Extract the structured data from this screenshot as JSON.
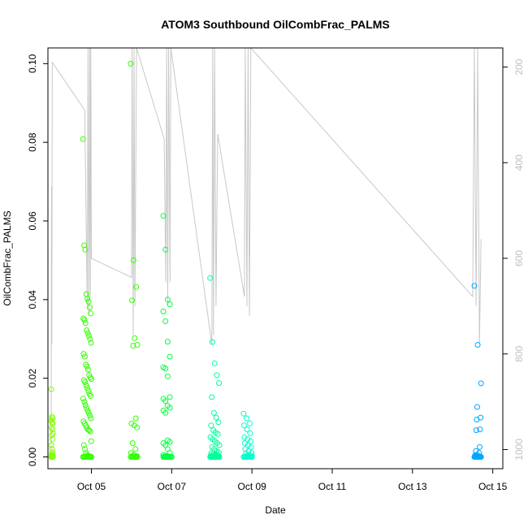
{
  "chart_data": {
    "type": "scatter",
    "title": "ATOM3 Southbound OilCombFrac_PALMS",
    "xlabel": "Date",
    "ylabel": "OilCombFrac_PALMS",
    "x_axis": {
      "type": "date",
      "min": "2016-10-03T22:00",
      "max": "2016-10-15T06:00",
      "ticks": [
        {
          "value": "2016-10-05T00:00",
          "label": "Oct 05"
        },
        {
          "value": "2016-10-07T00:00",
          "label": "Oct 07"
        },
        {
          "value": "2016-10-09T00:00",
          "label": "Oct 09"
        },
        {
          "value": "2016-10-11T00:00",
          "label": "Oct 11"
        },
        {
          "value": "2016-10-13T00:00",
          "label": "Oct 13"
        },
        {
          "value": "2016-10-15T00:00",
          "label": "Oct 15"
        }
      ]
    },
    "y_axis": {
      "min": -0.003,
      "max": 0.104,
      "ticks": [
        {
          "value": 0.0,
          "label": "0.00"
        },
        {
          "value": 0.02,
          "label": "0.02"
        },
        {
          "value": 0.04,
          "label": "0.04"
        },
        {
          "value": 0.06,
          "label": "0.06"
        },
        {
          "value": 0.08,
          "label": "0.08"
        },
        {
          "value": 0.1,
          "label": "0.10"
        }
      ]
    },
    "y2_axis": {
      "min": 1040,
      "max": 160,
      "reversed": true,
      "ticks": [
        {
          "value": 200,
          "label": "200"
        },
        {
          "value": 400,
          "label": "400"
        },
        {
          "value": 600,
          "label": "600"
        },
        {
          "value": 800,
          "label": "800"
        },
        {
          "value": 1000,
          "label": "1000"
        }
      ]
    },
    "grid": false,
    "legend": "none",
    "marker": "open-circle",
    "colors": {
      "flight1": "#80ff00",
      "flight2": "#33ff00",
      "flight3": "#00ff40",
      "flight4": "#00ff99",
      "flight5": "#00ffcc",
      "flight6": "#00a8ff",
      "pressure_line": "#c8c8c8",
      "axis": "#000000",
      "secondary_axis_labels": "#bfbfbf"
    },
    "series": [
      {
        "color_key": "flight1",
        "x_start": "2016-10-04T00:00",
        "x_end": "2016-10-04T01:00",
        "y": [
          0.0172,
          0.0102,
          0.0098,
          0.0093,
          0.0088,
          0.0085,
          0.0075,
          0.007,
          0.006,
          0.0055,
          0.0045,
          0.003,
          0.002,
          0.0012,
          0.0008,
          0.0005,
          0.0003,
          0.0002,
          0.0001,
          0.0,
          0.0,
          0.0,
          0.0,
          0.0
        ]
      },
      {
        "color_key": "flight2",
        "x_start": "2016-10-04T19:00",
        "x_end": "2016-10-05T00:00",
        "y": [
          0.0808,
          0.0538,
          0.0527,
          0.0414,
          0.0402,
          0.0395,
          0.038,
          0.0365,
          0.0352,
          0.0348,
          0.034,
          0.0322,
          0.0315,
          0.0308,
          0.03,
          0.029,
          0.0262,
          0.0255,
          0.0235,
          0.023,
          0.0222,
          0.0208,
          0.0202,
          0.0198,
          0.0195,
          0.019,
          0.0182,
          0.0175,
          0.0168,
          0.016,
          0.0155,
          0.0148,
          0.014,
          0.0132,
          0.0125,
          0.0118,
          0.0112,
          0.0105,
          0.0098,
          0.009,
          0.0085,
          0.008,
          0.0075,
          0.007,
          0.0068,
          0.0065,
          0.004,
          0.003,
          0.002,
          0.001,
          0.0005,
          0.0003,
          0.0002,
          0.0001,
          0.0,
          0.0,
          0.0,
          0.0,
          0.0,
          0.0,
          0.0,
          0.0,
          0.0,
          0.0
        ]
      },
      {
        "color_key": "flight2",
        "x_start": "2016-10-05T23:30",
        "x_end": "2016-10-06T03:30",
        "y": [
          0.1,
          0.05,
          0.0432,
          0.0398,
          0.0302,
          0.0285,
          0.0283,
          0.0098,
          0.0085,
          0.008,
          0.0075,
          0.0035,
          0.002,
          0.001,
          0.0005,
          0.0003,
          0.0002,
          0.0001,
          0.0,
          0.0,
          0.0,
          0.0,
          0.0,
          0.0,
          0.0,
          0.0
        ]
      },
      {
        "color_key": "flight3",
        "x_start": "2016-10-06T19:00",
        "x_end": "2016-10-07T00:00",
        "y": [
          0.0613,
          0.0527,
          0.04,
          0.0388,
          0.037,
          0.0345,
          0.0293,
          0.0255,
          0.0228,
          0.0225,
          0.0205,
          0.0152,
          0.0148,
          0.0142,
          0.013,
          0.0125,
          0.0118,
          0.0112,
          0.0042,
          0.0038,
          0.0035,
          0.003,
          0.002,
          0.001,
          0.0005,
          0.0003,
          0.0002,
          0.0001,
          0.0,
          0.0,
          0.0,
          0.0,
          0.0,
          0.0,
          0.0,
          0.0,
          0.0,
          0.0
        ]
      },
      {
        "color_key": "flight4",
        "x_start": "2016-10-07T23:00",
        "x_end": "2016-10-08T04:30",
        "y": [
          0.0455,
          0.0292,
          0.0238,
          0.0208,
          0.0188,
          0.0152,
          0.0112,
          0.01,
          0.0088,
          0.008,
          0.0068,
          0.0062,
          0.0058,
          0.005,
          0.0045,
          0.004,
          0.0035,
          0.003,
          0.0025,
          0.002,
          0.0015,
          0.0012,
          0.001,
          0.0008,
          0.0006,
          0.0005,
          0.0004,
          0.0003,
          0.0002,
          0.0001,
          0.0,
          0.0,
          0.0,
          0.0,
          0.0,
          0.0,
          0.0,
          0.0,
          0.0,
          0.0,
          0.0,
          0.0
        ]
      },
      {
        "color_key": "flight5",
        "x_start": "2016-10-08T19:00",
        "x_end": "2016-10-09T00:00",
        "y": [
          0.011,
          0.0098,
          0.0085,
          0.008,
          0.007,
          0.006,
          0.005,
          0.0045,
          0.004,
          0.0035,
          0.003,
          0.0025,
          0.002,
          0.0015,
          0.001,
          0.0008,
          0.0005,
          0.0003,
          0.0002,
          0.0001,
          0.0,
          0.0,
          0.0,
          0.0,
          0.0,
          0.0,
          0.0,
          0.0,
          0.0,
          0.0
        ]
      },
      {
        "color_key": "flight6",
        "x_start": "2016-10-14T13:00",
        "x_end": "2016-10-14T17:00",
        "y": [
          0.0435,
          0.0285,
          0.0187,
          0.0127,
          0.01,
          0.0095,
          0.007,
          0.0068,
          0.0025,
          0.0015,
          0.001,
          0.0005,
          0.0003,
          0.0002,
          0.0001,
          0.0,
          0.0,
          0.0,
          0.0,
          0.0,
          0.0,
          0.0,
          0.0,
          0.0,
          0.0,
          0.0,
          0.0,
          0.0
        ]
      }
    ],
    "pressure_line": {
      "note": "secondary-axis pressure trace (hPa), drawn in grey",
      "points": [
        [
          "2016-10-04T00:00",
          1000
        ],
        [
          "2016-10-04T00:05",
          560
        ],
        [
          "2016-10-04T00:12",
          450
        ],
        [
          "2016-10-04T00:20",
          780
        ],
        [
          "2016-10-04T00:35",
          190
        ],
        [
          "2016-10-04T20:00",
          290
        ],
        [
          "2016-10-04T21:30",
          700
        ],
        [
          "2016-10-04T22:00",
          140
        ],
        [
          "2016-10-04T22:30",
          720
        ],
        [
          "2016-10-04T23:00",
          140
        ],
        [
          "2016-10-04T23:20",
          680
        ],
        [
          "2016-10-04T23:40",
          140
        ],
        [
          "2016-10-05T00:00",
          600
        ],
        [
          "2016-10-06T00:00",
          640
        ],
        [
          "2016-10-06T00:20",
          140
        ],
        [
          "2016-10-06T01:00",
          760
        ],
        [
          "2016-10-06T01:30",
          140
        ],
        [
          "2016-10-06T02:00",
          700
        ],
        [
          "2016-10-06T03:00",
          140
        ],
        [
          "2016-10-06T19:30",
          350
        ],
        [
          "2016-10-06T20:30",
          650
        ],
        [
          "2016-10-06T21:00",
          140
        ],
        [
          "2016-10-06T21:40",
          700
        ],
        [
          "2016-10-06T22:10",
          140
        ],
        [
          "2016-10-06T23:00",
          650
        ],
        [
          "2016-10-06T23:30",
          140
        ],
        [
          "2016-10-08T00:00",
          780
        ],
        [
          "2016-10-08T00:30",
          140
        ],
        [
          "2016-10-08T01:00",
          760
        ],
        [
          "2016-10-08T01:40",
          140
        ],
        [
          "2016-10-08T02:30",
          700
        ],
        [
          "2016-10-08T03:30",
          340
        ],
        [
          "2016-10-08T19:30",
          680
        ],
        [
          "2016-10-08T20:00",
          140
        ],
        [
          "2016-10-08T21:00",
          700
        ],
        [
          "2016-10-08T21:40",
          140
        ],
        [
          "2016-10-08T22:30",
          720
        ],
        [
          "2016-10-08T23:20",
          150
        ],
        [
          "2016-10-14T12:00",
          680
        ],
        [
          "2016-10-14T13:00",
          140
        ],
        [
          "2016-10-14T14:00",
          700
        ],
        [
          "2016-10-14T15:00",
          140
        ],
        [
          "2016-10-14T16:00",
          780
        ],
        [
          "2016-10-14T17:00",
          560
        ]
      ]
    }
  }
}
